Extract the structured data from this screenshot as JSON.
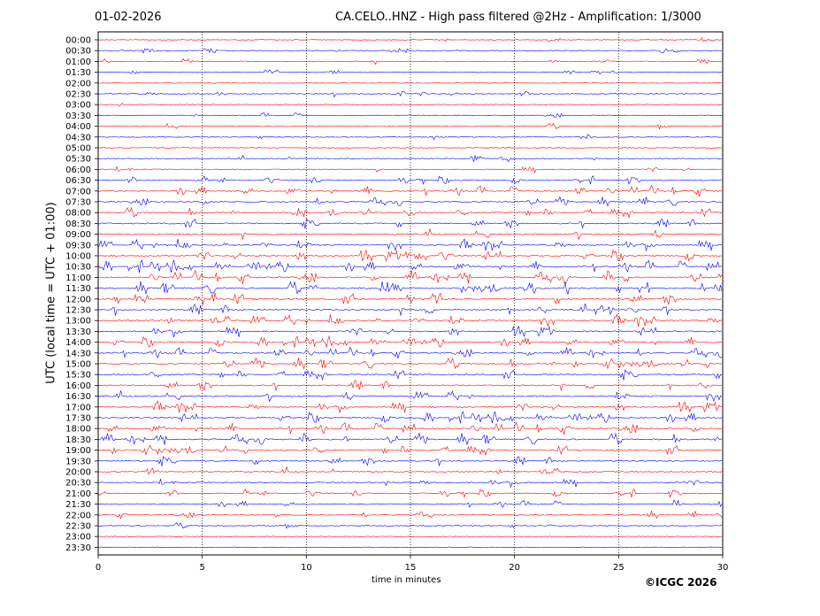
{
  "header": {
    "date": "01-02-2026",
    "title": "CA.CELO..HNZ - High pass filtered @2Hz - Amplification: 1/3000"
  },
  "footer": {
    "credit": "©ICGC 2026"
  },
  "chart_data": {
    "type": "line",
    "xlabel": "time in minutes",
    "ylabel": "UTC (local time = UTC + 01:00)",
    "xlim": [
      0,
      30
    ],
    "x_ticks": [
      0,
      5,
      10,
      15,
      20,
      25,
      30
    ],
    "y_ticks": [
      "00:00",
      "00:30",
      "01:00",
      "01:30",
      "02:00",
      "02:30",
      "03:00",
      "03:30",
      "04:00",
      "04:30",
      "05:00",
      "05:30",
      "06:00",
      "06:30",
      "07:00",
      "07:30",
      "08:00",
      "08:30",
      "09:00",
      "09:30",
      "10:00",
      "10:30",
      "11:00",
      "11:30",
      "12:00",
      "12:30",
      "13:00",
      "13:30",
      "14:00",
      "14:30",
      "15:00",
      "15:30",
      "16:00",
      "16:30",
      "17:00",
      "17:30",
      "18:00",
      "18:30",
      "19:00",
      "19:30",
      "20:00",
      "20:30",
      "21:00",
      "21:30",
      "22:00",
      "22:30",
      "23:00",
      "23:30"
    ],
    "series_colors": [
      "#ff0000",
      "#0000ff"
    ],
    "vertical_grid": "dotted",
    "trace_activity": [
      0.1,
      0.2,
      0.25,
      0.15,
      0.05,
      0.3,
      0.05,
      0.2,
      0.25,
      0.2,
      0.15,
      0.3,
      0.35,
      0.5,
      0.75,
      0.6,
      0.7,
      0.7,
      0.8,
      0.85,
      0.95,
      0.95,
      1.0,
      1.0,
      1.0,
      0.95,
      0.9,
      0.85,
      0.8,
      0.75,
      0.8,
      0.75,
      0.85,
      0.8,
      0.85,
      0.85,
      0.9,
      0.85,
      0.8,
      0.7,
      0.65,
      0.55,
      0.5,
      0.4,
      0.35,
      0.25,
      0.05,
      0.02
    ]
  }
}
